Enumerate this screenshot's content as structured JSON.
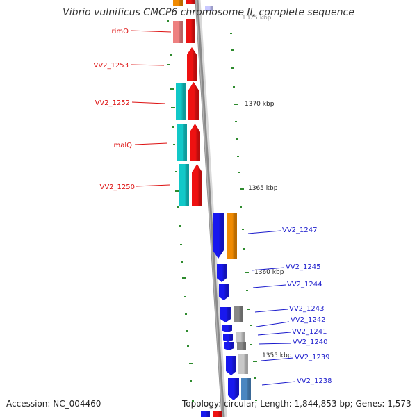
{
  "title": "Vibrio vulnificus CMCP6 chromosome II, complete sequence",
  "footer": {
    "accession": "Accession: NC_004460",
    "summary": "Topology: circular; Length: 1,844,853 bp; Genes: 1,573"
  },
  "colors": {
    "backbone": "#8a8a8a",
    "tick": "#2e8b2e",
    "left_label": "#dd1111",
    "right_label": "#1a1acc",
    "red_gene": "#ee1111",
    "cyan_gene": "#11c8c8",
    "blue_gene": "#1818ee",
    "orange_gene": "#f08a00",
    "gray_gene": "#888888",
    "lightgray_gene": "#c8c8c8",
    "steel_gene": "#4a86c0",
    "pink_gene": "#ee8080",
    "lavender_gene": "#c8c8ff"
  },
  "scale_labels": [
    "1375 kbp",
    "1370 kbp",
    "1365 kbp",
    "1360 kbp",
    "1355 kbp"
  ],
  "gene_labels": {
    "left": [
      "rimO",
      "VV2_1253",
      "VV2_1252",
      "malQ",
      "VV2_1250"
    ],
    "right": [
      "VV2_1247",
      "VV2_1245",
      "VV2_1244",
      "VV2_1243",
      "VV2_1242",
      "VV2_1241",
      "VV2_1240",
      "VV2_1239",
      "VV2_1238"
    ]
  }
}
